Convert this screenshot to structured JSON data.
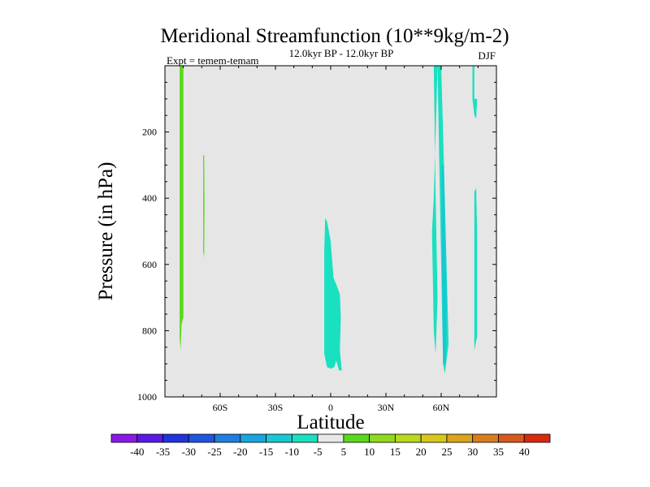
{
  "chart_data": {
    "type": "contour",
    "title": "Meridional Streamfunction (10**9kg/m-2)",
    "subtitle": "12.0kyr BP - 12.0kyr BP",
    "left_label": "Expt = temem-temam",
    "right_label": "DJF",
    "xlabel": "Latitude",
    "ylabel": "Pressure (in hPa)",
    "xlim": [
      -90,
      90
    ],
    "ylim": [
      1000,
      0
    ],
    "y_reversed": true,
    "x_ticks": [
      {
        "value": -60,
        "label": "60S"
      },
      {
        "value": -30,
        "label": "30S"
      },
      {
        "value": 0,
        "label": "0"
      },
      {
        "value": 30,
        "label": "30N"
      },
      {
        "value": 60,
        "label": "60N"
      }
    ],
    "y_ticks": [
      {
        "value": 200,
        "label": "200"
      },
      {
        "value": 400,
        "label": "400"
      },
      {
        "value": 600,
        "label": "600"
      },
      {
        "value": 800,
        "label": "800"
      },
      {
        "value": 1000,
        "label": "1000"
      }
    ],
    "background_color": "#e6e6e6",
    "colorbar": {
      "labels": [
        "-40",
        "-35",
        "-30",
        "-25",
        "-20",
        "-15",
        "-10",
        "-5",
        "5",
        "10",
        "15",
        "20",
        "25",
        "30",
        "35",
        "40"
      ],
      "colors": [
        "#8a19e6",
        "#5a19e6",
        "#2233dd",
        "#1f55e0",
        "#1f7fe0",
        "#17a6e0",
        "#17c8d4",
        "#19e0c0",
        "#e8e8e8",
        "#5ad91c",
        "#90d91c",
        "#b8d91c",
        "#d9c81c",
        "#d9a51c",
        "#d97d1c",
        "#d9581c",
        "#d92a10"
      ]
    },
    "regions": [
      {
        "name": "sh-high-lat-positive",
        "color": "#5ad91c",
        "points": [
          [
            -82,
            0
          ],
          [
            -80,
            0
          ],
          [
            -80,
            760
          ],
          [
            -81,
            780
          ],
          [
            -81.5,
            860
          ],
          [
            -82,
            820
          ],
          [
            -82,
            0
          ]
        ]
      },
      {
        "name": "sh-thin-positive",
        "color": "#5ad91c",
        "points": [
          [
            -69.2,
            270
          ],
          [
            -68.7,
            270
          ],
          [
            -68.5,
            420
          ],
          [
            -68.7,
            580
          ],
          [
            -69.2,
            560
          ],
          [
            -69.2,
            270
          ]
        ]
      },
      {
        "name": "equatorial-negative",
        "color": "#19e0c0",
        "points": [
          [
            -3,
            460
          ],
          [
            -2,
            470
          ],
          [
            0,
            530
          ],
          [
            1.5,
            640
          ],
          [
            3,
            660
          ],
          [
            5,
            690
          ],
          [
            5.5,
            760
          ],
          [
            5,
            860
          ],
          [
            6,
            920
          ],
          [
            4.5,
            920
          ],
          [
            3,
            890
          ],
          [
            2,
            910
          ],
          [
            0,
            915
          ],
          [
            -2,
            910
          ],
          [
            -3.5,
            870
          ],
          [
            -3.5,
            700
          ],
          [
            -3.5,
            560
          ],
          [
            -3,
            460
          ]
        ]
      },
      {
        "name": "nh-midlat-negative",
        "color": "#19e0c0",
        "points": [
          [
            56,
            0
          ],
          [
            58,
            0
          ],
          [
            59,
            300
          ],
          [
            60,
            600
          ],
          [
            60.5,
            750
          ],
          [
            61,
            900
          ],
          [
            62,
            930
          ],
          [
            64,
            840
          ],
          [
            63,
            620
          ],
          [
            62,
            400
          ],
          [
            61,
            200
          ],
          [
            60,
            0
          ],
          [
            59,
            0
          ],
          [
            58,
            0
          ],
          [
            57,
            200
          ],
          [
            56,
            400
          ],
          [
            55,
            500
          ],
          [
            56,
            800
          ],
          [
            57,
            870
          ],
          [
            58,
            700
          ],
          [
            57,
            400
          ],
          [
            56,
            0
          ]
        ]
      },
      {
        "name": "nh-midlat-inner",
        "color": "#17c8d4",
        "points": [
          [
            60.2,
            300
          ],
          [
            61.5,
            300
          ],
          [
            62,
            500
          ],
          [
            63,
            700
          ],
          [
            62.5,
            900
          ],
          [
            61,
            900
          ],
          [
            60.5,
            600
          ],
          [
            60.2,
            300
          ]
        ]
      },
      {
        "name": "nh-high-lat-negative",
        "color": "#19e0c0",
        "points": [
          [
            77,
            0
          ],
          [
            78,
            0
          ],
          [
            78,
            100
          ],
          [
            79,
            100
          ],
          [
            79.5,
            100
          ],
          [
            79,
            160
          ],
          [
            78,
            150
          ],
          [
            77,
            100
          ],
          [
            77,
            0
          ]
        ]
      },
      {
        "name": "nh-high-lat-lower",
        "color": "#19e0c0",
        "points": [
          [
            78,
            860
          ],
          [
            78,
            380
          ],
          [
            79,
            370
          ],
          [
            79.5,
            500
          ],
          [
            79.5,
            820
          ],
          [
            79,
            830
          ],
          [
            78,
            860
          ]
        ]
      }
    ]
  }
}
